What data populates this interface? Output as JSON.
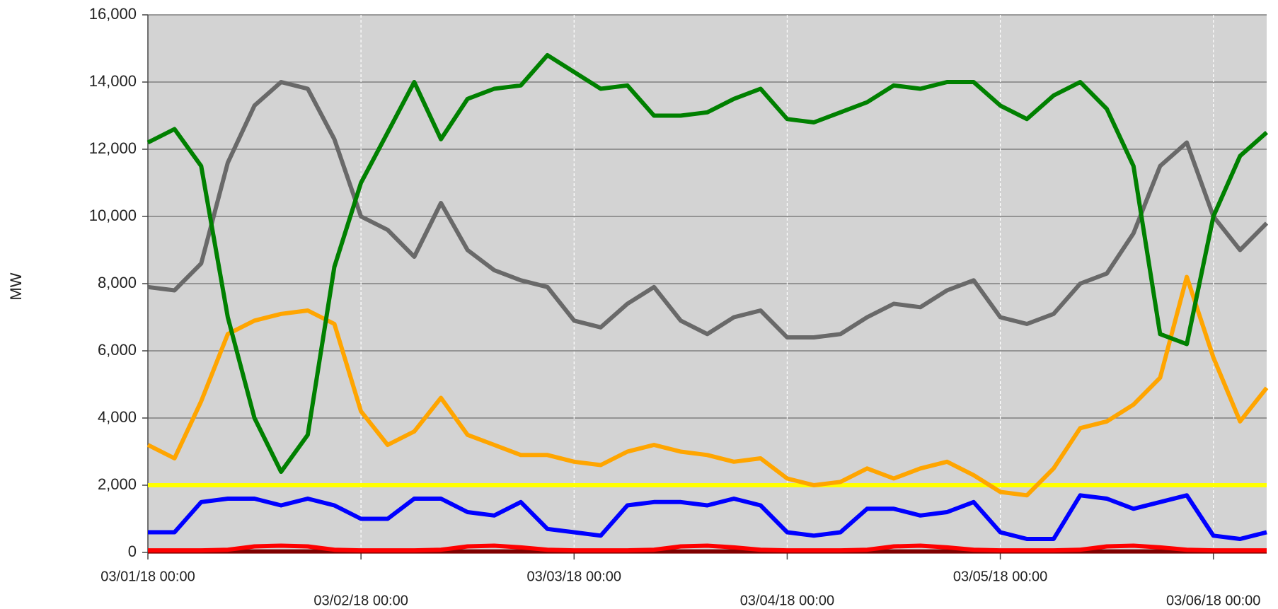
{
  "chart_data": {
    "type": "line",
    "ylabel": "MW",
    "x": [
      "03/01/18 00:00",
      "03/01/18 03:00",
      "03/01/18 06:00",
      "03/01/18 09:00",
      "03/01/18 12:00",
      "03/01/18 15:00",
      "03/01/18 18:00",
      "03/01/18 21:00",
      "03/02/18 00:00",
      "03/02/18 03:00",
      "03/02/18 06:00",
      "03/02/18 09:00",
      "03/02/18 12:00",
      "03/02/18 15:00",
      "03/02/18 18:00",
      "03/02/18 21:00",
      "03/03/18 00:00",
      "03/03/18 03:00",
      "03/03/18 06:00",
      "03/03/18 09:00",
      "03/03/18 12:00",
      "03/03/18 15:00",
      "03/03/18 18:00",
      "03/03/18 21:00",
      "03/04/18 00:00",
      "03/04/18 03:00",
      "03/04/18 06:00",
      "03/04/18 09:00",
      "03/04/18 12:00",
      "03/04/18 15:00",
      "03/04/18 18:00",
      "03/04/18 21:00",
      "03/05/18 00:00",
      "03/05/18 03:00",
      "03/05/18 06:00",
      "03/05/18 09:00",
      "03/05/18 12:00",
      "03/05/18 15:00",
      "03/05/18 18:00",
      "03/05/18 21:00",
      "03/06/18 00:00",
      "03/06/18 03:00",
      "03/06/18 06:00"
    ],
    "series": [
      {
        "color": "#ffff00",
        "values": [
          2000,
          2000,
          2000,
          2000,
          2000,
          2000,
          2000,
          2000,
          2000,
          2000,
          2000,
          2000,
          2000,
          2000,
          2000,
          2000,
          2000,
          2000,
          2000,
          2000,
          2000,
          2000,
          2000,
          2000,
          2000,
          2000,
          2000,
          2000,
          2000,
          2000,
          2000,
          2000,
          2000,
          2000,
          2000,
          2000,
          2000,
          2000,
          2000,
          2000,
          2000,
          2000,
          2000
        ]
      },
      {
        "color": "#800000",
        "values": [
          30,
          30,
          30,
          30,
          30,
          30,
          30,
          30,
          30,
          30,
          30,
          30,
          30,
          30,
          30,
          30,
          30,
          30,
          30,
          30,
          30,
          30,
          30,
          30,
          30,
          30,
          30,
          30,
          30,
          30,
          30,
          30,
          30,
          30,
          30,
          30,
          30,
          30,
          30,
          30,
          30,
          30,
          30
        ]
      },
      {
        "color": "#ff0000",
        "values": [
          60,
          60,
          60,
          80,
          180,
          200,
          180,
          80,
          60,
          60,
          60,
          80,
          180,
          200,
          150,
          80,
          60,
          60,
          60,
          80,
          180,
          200,
          150,
          80,
          60,
          60,
          60,
          80,
          180,
          200,
          150,
          80,
          60,
          60,
          60,
          80,
          180,
          200,
          150,
          80,
          60,
          60,
          60
        ]
      },
      {
        "color": "#0000ff",
        "values": [
          600,
          600,
          1500,
          1600,
          1600,
          1400,
          1600,
          1400,
          1000,
          1000,
          1600,
          1600,
          1200,
          1100,
          1500,
          700,
          600,
          500,
          1400,
          1500,
          1500,
          1400,
          1600,
          1400,
          600,
          500,
          600,
          1300,
          1300,
          1100,
          1200,
          1500,
          600,
          400,
          400,
          1700,
          1600,
          1300,
          1500,
          1700,
          500,
          400,
          600
        ]
      },
      {
        "color": "#ffa500",
        "values": [
          3200,
          2800,
          4500,
          6500,
          6900,
          7100,
          7200,
          6800,
          4200,
          3200,
          3600,
          4600,
          3500,
          3200,
          2900,
          2900,
          2700,
          2600,
          3000,
          3200,
          3000,
          2900,
          2700,
          2800,
          2200,
          2000,
          2100,
          2500,
          2200,
          2500,
          2700,
          2300,
          1800,
          1700,
          2500,
          3700,
          3900,
          4400,
          5200,
          8200,
          5800,
          3900,
          4900
        ]
      },
      {
        "color": "#696969",
        "values": [
          7900,
          7800,
          8600,
          11600,
          13300,
          14000,
          13800,
          12300,
          10000,
          9600,
          8800,
          10400,
          9000,
          8400,
          8100,
          7900,
          6900,
          6700,
          7400,
          7900,
          6900,
          6500,
          7000,
          7200,
          6400,
          6400,
          6500,
          7000,
          7400,
          7300,
          7800,
          8100,
          7000,
          6800,
          7100,
          8000,
          8300,
          9500,
          11500,
          12200,
          10000,
          9000,
          9800
        ]
      },
      {
        "color": "#008000",
        "values": [
          12200,
          12600,
          11500,
          7000,
          4000,
          2400,
          3500,
          8500,
          11000,
          12500,
          14000,
          12300,
          13500,
          13800,
          13900,
          14800,
          14300,
          13800,
          13900,
          13000,
          13000,
          13100,
          13500,
          13800,
          12900,
          12800,
          13100,
          13400,
          13900,
          13800,
          14000,
          14000,
          13300,
          12900,
          13600,
          14000,
          13200,
          11500,
          6500,
          6200,
          10000,
          11800,
          12500
        ]
      }
    ],
    "xlim": [
      "03/01/18 00:00",
      "03/06/18 06:00"
    ],
    "xticks": [
      "03/01/18 00:00",
      "03/02/18 00:00",
      "03/03/18 00:00",
      "03/04/18 00:00",
      "03/05/18 00:00",
      "03/06/18 00:00"
    ],
    "ylim": [
      0,
      16000
    ],
    "yticks": [
      0,
      {
        "value": 2000,
        "label": "2,000"
      },
      {
        "value": 4000,
        "label": "4,000"
      },
      {
        "value": 6000,
        "label": "6,000"
      },
      {
        "value": 8000,
        "label": "8,000"
      },
      {
        "value": 10000,
        "label": "10,000"
      },
      {
        "value": 12000,
        "label": "12,000"
      },
      {
        "value": 14000,
        "label": "14,000"
      },
      {
        "value": 16000,
        "label": "16,000"
      }
    ],
    "grid": true,
    "background": "#d3d3d3"
  }
}
